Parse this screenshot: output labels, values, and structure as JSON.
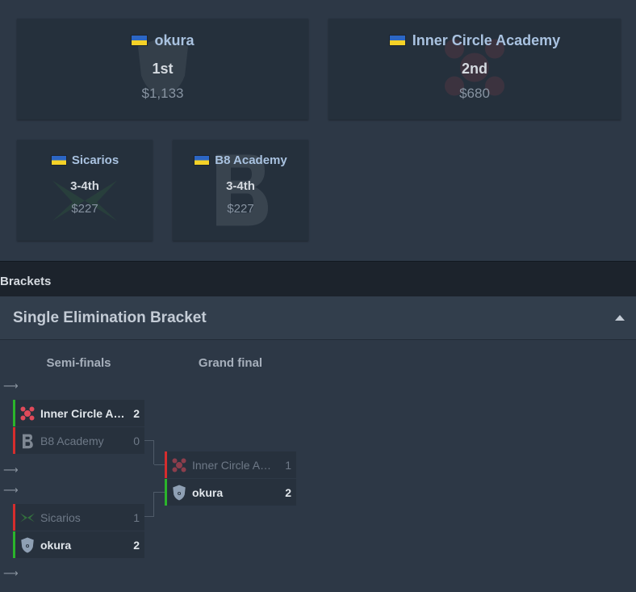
{
  "placements": [
    {
      "team": "okura",
      "place": "1st",
      "prize": "$1,133",
      "flag": "ukraine-flag-icon",
      "logo": "okura-logo-icon"
    },
    {
      "team": "Inner Circle Academy",
      "place": "2nd",
      "prize": "$680",
      "flag": "ukraine-flag-icon",
      "logo": "inner-circle-logo-icon"
    },
    {
      "team": "Sicarios",
      "place": "3-4th",
      "prize": "$227",
      "flag": "ukraine-flag-icon",
      "logo": "sicarios-logo-icon"
    },
    {
      "team": "B8 Academy",
      "place": "3-4th",
      "prize": "$227",
      "flag": "ukraine-flag-icon",
      "logo": "b8-logo-icon"
    }
  ],
  "brackets_label": "Brackets",
  "bracket": {
    "title": "Single Elimination Bracket",
    "rounds": [
      "Semi-finals",
      "Grand final"
    ],
    "semi1": [
      {
        "team": "Inner Circle Ac...",
        "score": "2",
        "result": "win"
      },
      {
        "team": "B8 Academy",
        "score": "0",
        "result": "loss"
      }
    ],
    "semi2": [
      {
        "team": "Sicarios",
        "score": "1",
        "result": "loss"
      },
      {
        "team": "okura",
        "score": "2",
        "result": "win"
      }
    ],
    "final": [
      {
        "team": "Inner Circle Aca...",
        "score": "1",
        "result": "loss"
      },
      {
        "team": "okura",
        "score": "2",
        "result": "win"
      }
    ]
  },
  "colors": {
    "win": "#2bb52b",
    "loss": "#d52d2d",
    "team_link": "#a9c2e0"
  }
}
